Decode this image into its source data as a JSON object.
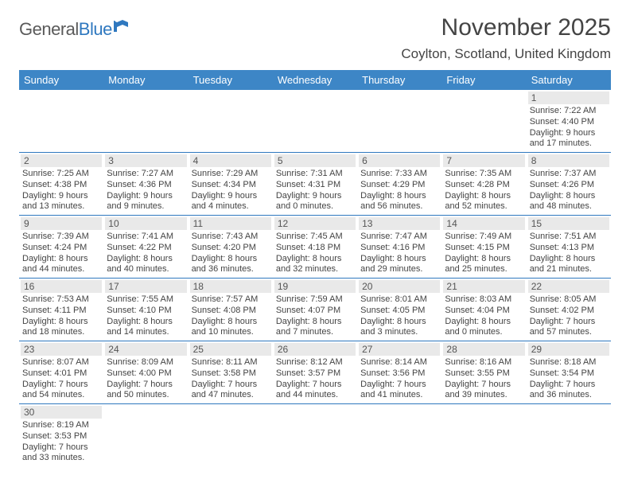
{
  "logo": {
    "word1": "General",
    "word2": "Blue",
    "color_word2": "#2f78bf",
    "flag_color": "#2f78bf"
  },
  "header": {
    "month_year": "November 2025",
    "location": "Coylton, Scotland, United Kingdom",
    "month_color": "#444444",
    "location_color": "#444444"
  },
  "styles": {
    "header_bg": "#3d86c6",
    "header_fg": "#ffffff",
    "row_border": "#2f78bf",
    "daynum_bg": "#e9e9e9",
    "text_color": "#444444",
    "page_bg": "#ffffff"
  },
  "weekdays": [
    "Sunday",
    "Monday",
    "Tuesday",
    "Wednesday",
    "Thursday",
    "Friday",
    "Saturday"
  ],
  "first_weekday_index": 6,
  "days": [
    {
      "n": 1,
      "sunrise": "7:22 AM",
      "sunset": "4:40 PM",
      "daylight": "9 hours and 17 minutes."
    },
    {
      "n": 2,
      "sunrise": "7:25 AM",
      "sunset": "4:38 PM",
      "daylight": "9 hours and 13 minutes."
    },
    {
      "n": 3,
      "sunrise": "7:27 AM",
      "sunset": "4:36 PM",
      "daylight": "9 hours and 9 minutes."
    },
    {
      "n": 4,
      "sunrise": "7:29 AM",
      "sunset": "4:34 PM",
      "daylight": "9 hours and 4 minutes."
    },
    {
      "n": 5,
      "sunrise": "7:31 AM",
      "sunset": "4:31 PM",
      "daylight": "9 hours and 0 minutes."
    },
    {
      "n": 6,
      "sunrise": "7:33 AM",
      "sunset": "4:29 PM",
      "daylight": "8 hours and 56 minutes."
    },
    {
      "n": 7,
      "sunrise": "7:35 AM",
      "sunset": "4:28 PM",
      "daylight": "8 hours and 52 minutes."
    },
    {
      "n": 8,
      "sunrise": "7:37 AM",
      "sunset": "4:26 PM",
      "daylight": "8 hours and 48 minutes."
    },
    {
      "n": 9,
      "sunrise": "7:39 AM",
      "sunset": "4:24 PM",
      "daylight": "8 hours and 44 minutes."
    },
    {
      "n": 10,
      "sunrise": "7:41 AM",
      "sunset": "4:22 PM",
      "daylight": "8 hours and 40 minutes."
    },
    {
      "n": 11,
      "sunrise": "7:43 AM",
      "sunset": "4:20 PM",
      "daylight": "8 hours and 36 minutes."
    },
    {
      "n": 12,
      "sunrise": "7:45 AM",
      "sunset": "4:18 PM",
      "daylight": "8 hours and 32 minutes."
    },
    {
      "n": 13,
      "sunrise": "7:47 AM",
      "sunset": "4:16 PM",
      "daylight": "8 hours and 29 minutes."
    },
    {
      "n": 14,
      "sunrise": "7:49 AM",
      "sunset": "4:15 PM",
      "daylight": "8 hours and 25 minutes."
    },
    {
      "n": 15,
      "sunrise": "7:51 AM",
      "sunset": "4:13 PM",
      "daylight": "8 hours and 21 minutes."
    },
    {
      "n": 16,
      "sunrise": "7:53 AM",
      "sunset": "4:11 PM",
      "daylight": "8 hours and 18 minutes."
    },
    {
      "n": 17,
      "sunrise": "7:55 AM",
      "sunset": "4:10 PM",
      "daylight": "8 hours and 14 minutes."
    },
    {
      "n": 18,
      "sunrise": "7:57 AM",
      "sunset": "4:08 PM",
      "daylight": "8 hours and 10 minutes."
    },
    {
      "n": 19,
      "sunrise": "7:59 AM",
      "sunset": "4:07 PM",
      "daylight": "8 hours and 7 minutes."
    },
    {
      "n": 20,
      "sunrise": "8:01 AM",
      "sunset": "4:05 PM",
      "daylight": "8 hours and 3 minutes."
    },
    {
      "n": 21,
      "sunrise": "8:03 AM",
      "sunset": "4:04 PM",
      "daylight": "8 hours and 0 minutes."
    },
    {
      "n": 22,
      "sunrise": "8:05 AM",
      "sunset": "4:02 PM",
      "daylight": "7 hours and 57 minutes."
    },
    {
      "n": 23,
      "sunrise": "8:07 AM",
      "sunset": "4:01 PM",
      "daylight": "7 hours and 54 minutes."
    },
    {
      "n": 24,
      "sunrise": "8:09 AM",
      "sunset": "4:00 PM",
      "daylight": "7 hours and 50 minutes."
    },
    {
      "n": 25,
      "sunrise": "8:11 AM",
      "sunset": "3:58 PM",
      "daylight": "7 hours and 47 minutes."
    },
    {
      "n": 26,
      "sunrise": "8:12 AM",
      "sunset": "3:57 PM",
      "daylight": "7 hours and 44 minutes."
    },
    {
      "n": 27,
      "sunrise": "8:14 AM",
      "sunset": "3:56 PM",
      "daylight": "7 hours and 41 minutes."
    },
    {
      "n": 28,
      "sunrise": "8:16 AM",
      "sunset": "3:55 PM",
      "daylight": "7 hours and 39 minutes."
    },
    {
      "n": 29,
      "sunrise": "8:18 AM",
      "sunset": "3:54 PM",
      "daylight": "7 hours and 36 minutes."
    },
    {
      "n": 30,
      "sunrise": "8:19 AM",
      "sunset": "3:53 PM",
      "daylight": "7 hours and 33 minutes."
    }
  ],
  "labels": {
    "sunrise_prefix": "Sunrise: ",
    "sunset_prefix": "Sunset: ",
    "daylight_prefix": "Daylight: "
  }
}
